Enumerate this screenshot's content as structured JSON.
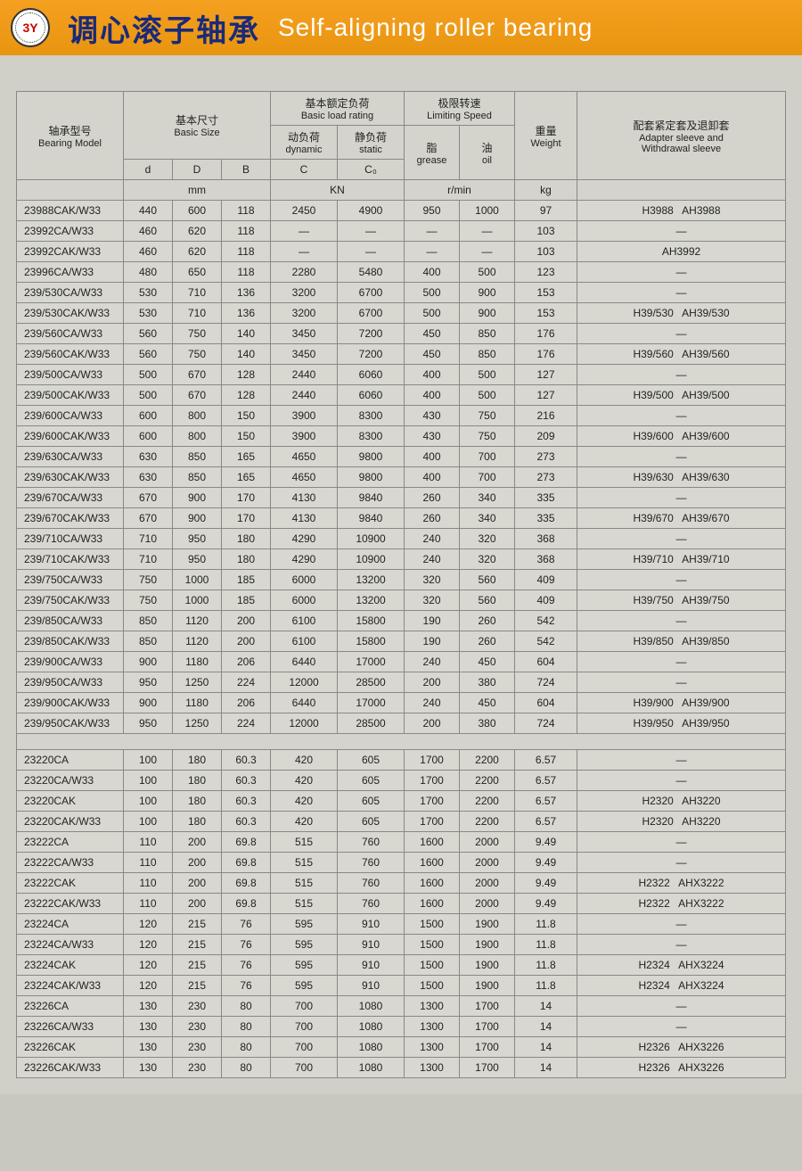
{
  "header": {
    "logo_text": "3Y",
    "title_cn": "调心滚子轴承",
    "title_en": "Self-aligning roller bearing"
  },
  "table": {
    "headers": {
      "model_cn": "轴承型号",
      "model_en": "Bearing Model",
      "size_cn": "基本尺寸",
      "size_en": "Basic Size",
      "load_cn": "基本额定负荷",
      "load_en": "Basic load rating",
      "dyn_cn": "动负荷",
      "dyn_en": "dynamic",
      "stat_cn": "静负荷",
      "stat_en": "static",
      "speed_cn": "极限转速",
      "speed_en": "Limiting Speed",
      "grease_cn": "脂",
      "grease_en": "grease",
      "oil_cn": "油",
      "oil_en": "oil",
      "weight_cn": "重量",
      "weight_en": "Weight",
      "sleeve_cn": "配套紧定套及退卸套",
      "sleeve_en1": "Adapter sleeve and",
      "sleeve_en2": "Withdrawal sleeve",
      "d": "d",
      "D": "D",
      "B": "B",
      "C": "C",
      "C0": "C₀",
      "mm": "mm",
      "KN": "KN",
      "rmin": "r/min",
      "kg": "kg"
    },
    "rows1": [
      {
        "m": "23988CAK/W33",
        "d": "440",
        "D": "600",
        "B": "118",
        "C": "2450",
        "C0": "4900",
        "g": "950",
        "o": "1000",
        "w": "97",
        "s": "H3988   AH3988"
      },
      {
        "m": "23992CA/W33",
        "d": "460",
        "D": "620",
        "B": "118",
        "C": "—",
        "C0": "—",
        "g": "—",
        "o": "—",
        "w": "103",
        "s": "—"
      },
      {
        "m": "23992CAK/W33",
        "d": "460",
        "D": "620",
        "B": "118",
        "C": "—",
        "C0": "—",
        "g": "—",
        "o": "—",
        "w": "103",
        "s": "AH3992"
      },
      {
        "m": "23996CA/W33",
        "d": "480",
        "D": "650",
        "B": "118",
        "C": "2280",
        "C0": "5480",
        "g": "400",
        "o": "500",
        "w": "123",
        "s": "—"
      },
      {
        "m": "239/530CA/W33",
        "d": "530",
        "D": "710",
        "B": "136",
        "C": "3200",
        "C0": "6700",
        "g": "500",
        "o": "900",
        "w": "153",
        "s": "—"
      },
      {
        "m": "239/530CAK/W33",
        "d": "530",
        "D": "710",
        "B": "136",
        "C": "3200",
        "C0": "6700",
        "g": "500",
        "o": "900",
        "w": "153",
        "s": "H39/530   AH39/530"
      },
      {
        "m": "239/560CA/W33",
        "d": "560",
        "D": "750",
        "B": "140",
        "C": "3450",
        "C0": "7200",
        "g": "450",
        "o": "850",
        "w": "176",
        "s": "—"
      },
      {
        "m": "239/560CAK/W33",
        "d": "560",
        "D": "750",
        "B": "140",
        "C": "3450",
        "C0": "7200",
        "g": "450",
        "o": "850",
        "w": "176",
        "s": "H39/560   AH39/560"
      },
      {
        "m": "239/500CA/W33",
        "d": "500",
        "D": "670",
        "B": "128",
        "C": "2440",
        "C0": "6060",
        "g": "400",
        "o": "500",
        "w": "127",
        "s": "—"
      },
      {
        "m": "239/500CAK/W33",
        "d": "500",
        "D": "670",
        "B": "128",
        "C": "2440",
        "C0": "6060",
        "g": "400",
        "o": "500",
        "w": "127",
        "s": "H39/500   AH39/500"
      },
      {
        "m": "239/600CA/W33",
        "d": "600",
        "D": "800",
        "B": "150",
        "C": "3900",
        "C0": "8300",
        "g": "430",
        "o": "750",
        "w": "216",
        "s": "—"
      },
      {
        "m": "239/600CAK/W33",
        "d": "600",
        "D": "800",
        "B": "150",
        "C": "3900",
        "C0": "8300",
        "g": "430",
        "o": "750",
        "w": "209",
        "s": "H39/600   AH39/600"
      },
      {
        "m": "239/630CA/W33",
        "d": "630",
        "D": "850",
        "B": "165",
        "C": "4650",
        "C0": "9800",
        "g": "400",
        "o": "700",
        "w": "273",
        "s": "—"
      },
      {
        "m": "239/630CAK/W33",
        "d": "630",
        "D": "850",
        "B": "165",
        "C": "4650",
        "C0": "9800",
        "g": "400",
        "o": "700",
        "w": "273",
        "s": "H39/630   AH39/630"
      },
      {
        "m": "239/670CA/W33",
        "d": "670",
        "D": "900",
        "B": "170",
        "C": "4130",
        "C0": "9840",
        "g": "260",
        "o": "340",
        "w": "335",
        "s": "—"
      },
      {
        "m": "239/670CAK/W33",
        "d": "670",
        "D": "900",
        "B": "170",
        "C": "4130",
        "C0": "9840",
        "g": "260",
        "o": "340",
        "w": "335",
        "s": "H39/670   AH39/670"
      },
      {
        "m": "239/710CA/W33",
        "d": "710",
        "D": "950",
        "B": "180",
        "C": "4290",
        "C0": "10900",
        "g": "240",
        "o": "320",
        "w": "368",
        "s": "—"
      },
      {
        "m": "239/710CAK/W33",
        "d": "710",
        "D": "950",
        "B": "180",
        "C": "4290",
        "C0": "10900",
        "g": "240",
        "o": "320",
        "w": "368",
        "s": "H39/710   AH39/710"
      },
      {
        "m": "239/750CA/W33",
        "d": "750",
        "D": "1000",
        "B": "185",
        "C": "6000",
        "C0": "13200",
        "g": "320",
        "o": "560",
        "w": "409",
        "s": "—"
      },
      {
        "m": "239/750CAK/W33",
        "d": "750",
        "D": "1000",
        "B": "185",
        "C": "6000",
        "C0": "13200",
        "g": "320",
        "o": "560",
        "w": "409",
        "s": "H39/750   AH39/750"
      },
      {
        "m": "239/850CA/W33",
        "d": "850",
        "D": "1120",
        "B": "200",
        "C": "6100",
        "C0": "15800",
        "g": "190",
        "o": "260",
        "w": "542",
        "s": "—"
      },
      {
        "m": "239/850CAK/W33",
        "d": "850",
        "D": "1120",
        "B": "200",
        "C": "6100",
        "C0": "15800",
        "g": "190",
        "o": "260",
        "w": "542",
        "s": "H39/850   AH39/850"
      },
      {
        "m": "239/900CA/W33",
        "d": "900",
        "D": "1180",
        "B": "206",
        "C": "6440",
        "C0": "17000",
        "g": "240",
        "o": "450",
        "w": "604",
        "s": "—"
      },
      {
        "m": "239/950CA/W33",
        "d": "950",
        "D": "1250",
        "B": "224",
        "C": "12000",
        "C0": "28500",
        "g": "200",
        "o": "380",
        "w": "724",
        "s": "—"
      },
      {
        "m": "239/900CAK/W33",
        "d": "900",
        "D": "1180",
        "B": "206",
        "C": "6440",
        "C0": "17000",
        "g": "240",
        "o": "450",
        "w": "604",
        "s": "H39/900   AH39/900"
      },
      {
        "m": "239/950CAK/W33",
        "d": "950",
        "D": "1250",
        "B": "224",
        "C": "12000",
        "C0": "28500",
        "g": "200",
        "o": "380",
        "w": "724",
        "s": "H39/950   AH39/950"
      }
    ],
    "rows2": [
      {
        "m": "23220CA",
        "d": "100",
        "D": "180",
        "B": "60.3",
        "C": "420",
        "C0": "605",
        "g": "1700",
        "o": "2200",
        "w": "6.57",
        "s": "—"
      },
      {
        "m": "23220CA/W33",
        "d": "100",
        "D": "180",
        "B": "60.3",
        "C": "420",
        "C0": "605",
        "g": "1700",
        "o": "2200",
        "w": "6.57",
        "s": "—"
      },
      {
        "m": "23220CAK",
        "d": "100",
        "D": "180",
        "B": "60.3",
        "C": "420",
        "C0": "605",
        "g": "1700",
        "o": "2200",
        "w": "6.57",
        "s": "H2320   AH3220"
      },
      {
        "m": "23220CAK/W33",
        "d": "100",
        "D": "180",
        "B": "60.3",
        "C": "420",
        "C0": "605",
        "g": "1700",
        "o": "2200",
        "w": "6.57",
        "s": "H2320   AH3220"
      },
      {
        "m": "23222CA",
        "d": "110",
        "D": "200",
        "B": "69.8",
        "C": "515",
        "C0": "760",
        "g": "1600",
        "o": "2000",
        "w": "9.49",
        "s": "—"
      },
      {
        "m": "23222CA/W33",
        "d": "110",
        "D": "200",
        "B": "69.8",
        "C": "515",
        "C0": "760",
        "g": "1600",
        "o": "2000",
        "w": "9.49",
        "s": "—"
      },
      {
        "m": "23222CAK",
        "d": "110",
        "D": "200",
        "B": "69.8",
        "C": "515",
        "C0": "760",
        "g": "1600",
        "o": "2000",
        "w": "9.49",
        "s": "H2322   AHX3222"
      },
      {
        "m": "23222CAK/W33",
        "d": "110",
        "D": "200",
        "B": "69.8",
        "C": "515",
        "C0": "760",
        "g": "1600",
        "o": "2000",
        "w": "9.49",
        "s": "H2322   AHX3222"
      },
      {
        "m": "23224CA",
        "d": "120",
        "D": "215",
        "B": "76",
        "C": "595",
        "C0": "910",
        "g": "1500",
        "o": "1900",
        "w": "11.8",
        "s": "—"
      },
      {
        "m": "23224CA/W33",
        "d": "120",
        "D": "215",
        "B": "76",
        "C": "595",
        "C0": "910",
        "g": "1500",
        "o": "1900",
        "w": "11.8",
        "s": "—"
      },
      {
        "m": "23224CAK",
        "d": "120",
        "D": "215",
        "B": "76",
        "C": "595",
        "C0": "910",
        "g": "1500",
        "o": "1900",
        "w": "11.8",
        "s": "H2324   AHX3224"
      },
      {
        "m": "23224CAK/W33",
        "d": "120",
        "D": "215",
        "B": "76",
        "C": "595",
        "C0": "910",
        "g": "1500",
        "o": "1900",
        "w": "11.8",
        "s": "H2324   AHX3224"
      },
      {
        "m": "23226CA",
        "d": "130",
        "D": "230",
        "B": "80",
        "C": "700",
        "C0": "1080",
        "g": "1300",
        "o": "1700",
        "w": "14",
        "s": "—"
      },
      {
        "m": "23226CA/W33",
        "d": "130",
        "D": "230",
        "B": "80",
        "C": "700",
        "C0": "1080",
        "g": "1300",
        "o": "1700",
        "w": "14",
        "s": "—"
      },
      {
        "m": "23226CAK",
        "d": "130",
        "D": "230",
        "B": "80",
        "C": "700",
        "C0": "1080",
        "g": "1300",
        "o": "1700",
        "w": "14",
        "s": "H2326   AHX3226"
      },
      {
        "m": "23226CAK/W33",
        "d": "130",
        "D": "230",
        "B": "80",
        "C": "700",
        "C0": "1080",
        "g": "1300",
        "o": "1700",
        "w": "14",
        "s": "H2326   AHX3226"
      }
    ],
    "col_widths": [
      "120px",
      "55px",
      "55px",
      "55px",
      "75px",
      "75px",
      "62px",
      "62px",
      "70px",
      "auto"
    ]
  },
  "colors": {
    "header_bg": "#e89510",
    "title_cn": "#1a2a7a",
    "title_en": "#ffffff",
    "page_bg": "#d0d0c8",
    "table_bg": "#d8d8d0",
    "border": "#888888"
  }
}
